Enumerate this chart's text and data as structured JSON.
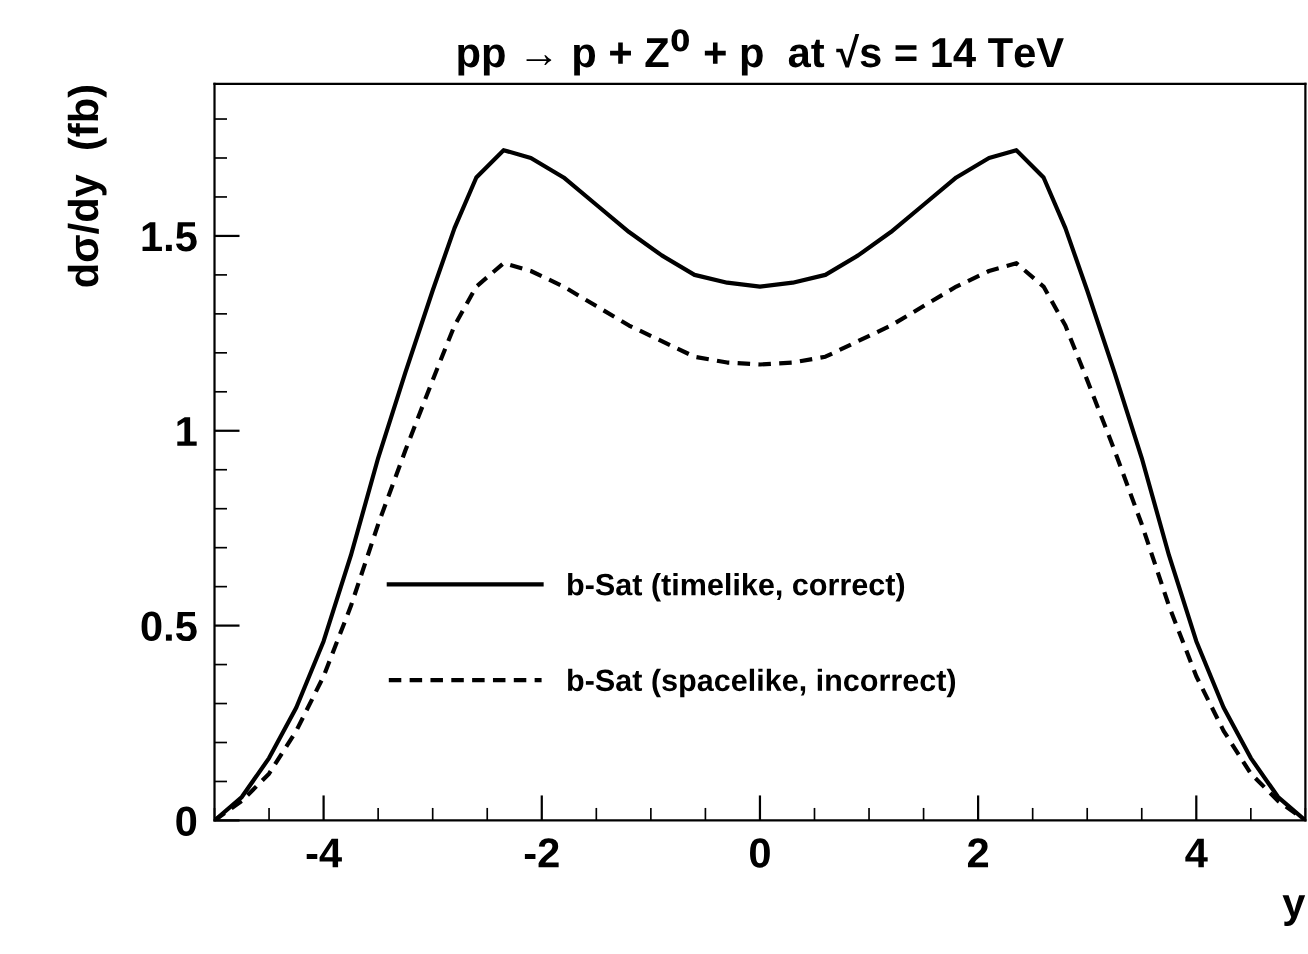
{
  "chart_data": {
    "type": "line",
    "title": "pp → p + Z$^{0}$ + p  at √s = 14 TeV",
    "xlabel": "y",
    "ylabel": "dσ/dy  (fb)",
    "x": [
      -5,
      -4.75,
      -4.5,
      -4.25,
      -4,
      -3.75,
      -3.5,
      -3.25,
      -3,
      -2.8,
      -2.6,
      -2.35,
      -2.1,
      -1.8,
      -1.5,
      -1.2,
      -0.9,
      -0.6,
      -0.3,
      0,
      0.3,
      0.6,
      0.9,
      1.2,
      1.5,
      1.8,
      2.1,
      2.35,
      2.6,
      2.8,
      3,
      3.25,
      3.5,
      3.75,
      4,
      4.25,
      4.5,
      4.75,
      5
    ],
    "series": [
      {
        "name": "b-Sat (timelike, correct)",
        "color": "#000000",
        "line_style": "solid",
        "values": [
          0,
          0.06,
          0.16,
          0.29,
          0.46,
          0.68,
          0.93,
          1.15,
          1.36,
          1.52,
          1.65,
          1.72,
          1.7,
          1.65,
          1.58,
          1.51,
          1.45,
          1.4,
          1.38,
          1.37,
          1.38,
          1.4,
          1.45,
          1.51,
          1.58,
          1.65,
          1.7,
          1.72,
          1.65,
          1.52,
          1.36,
          1.15,
          0.93,
          0.68,
          0.46,
          0.29,
          0.16,
          0.06,
          0
        ]
      },
      {
        "name": "b-Sat (spacelike, incorrect)",
        "color": "#000000",
        "line_style": "dashed",
        "values": [
          0,
          0.05,
          0.12,
          0.23,
          0.37,
          0.55,
          0.76,
          0.95,
          1.13,
          1.27,
          1.37,
          1.43,
          1.41,
          1.37,
          1.32,
          1.27,
          1.23,
          1.19,
          1.175,
          1.17,
          1.175,
          1.19,
          1.23,
          1.27,
          1.32,
          1.37,
          1.41,
          1.43,
          1.37,
          1.27,
          1.13,
          0.95,
          0.76,
          0.55,
          0.37,
          0.23,
          0.12,
          0.05,
          0
        ]
      }
    ],
    "xlim": [
      -5,
      5
    ],
    "ylim": [
      0,
      1.89
    ],
    "xticks": [
      -4,
      -2,
      0,
      2,
      4
    ],
    "yticks": [
      0,
      0.5,
      1,
      1.5
    ],
    "legend": "bottom",
    "grid": false,
    "marker": "none"
  }
}
